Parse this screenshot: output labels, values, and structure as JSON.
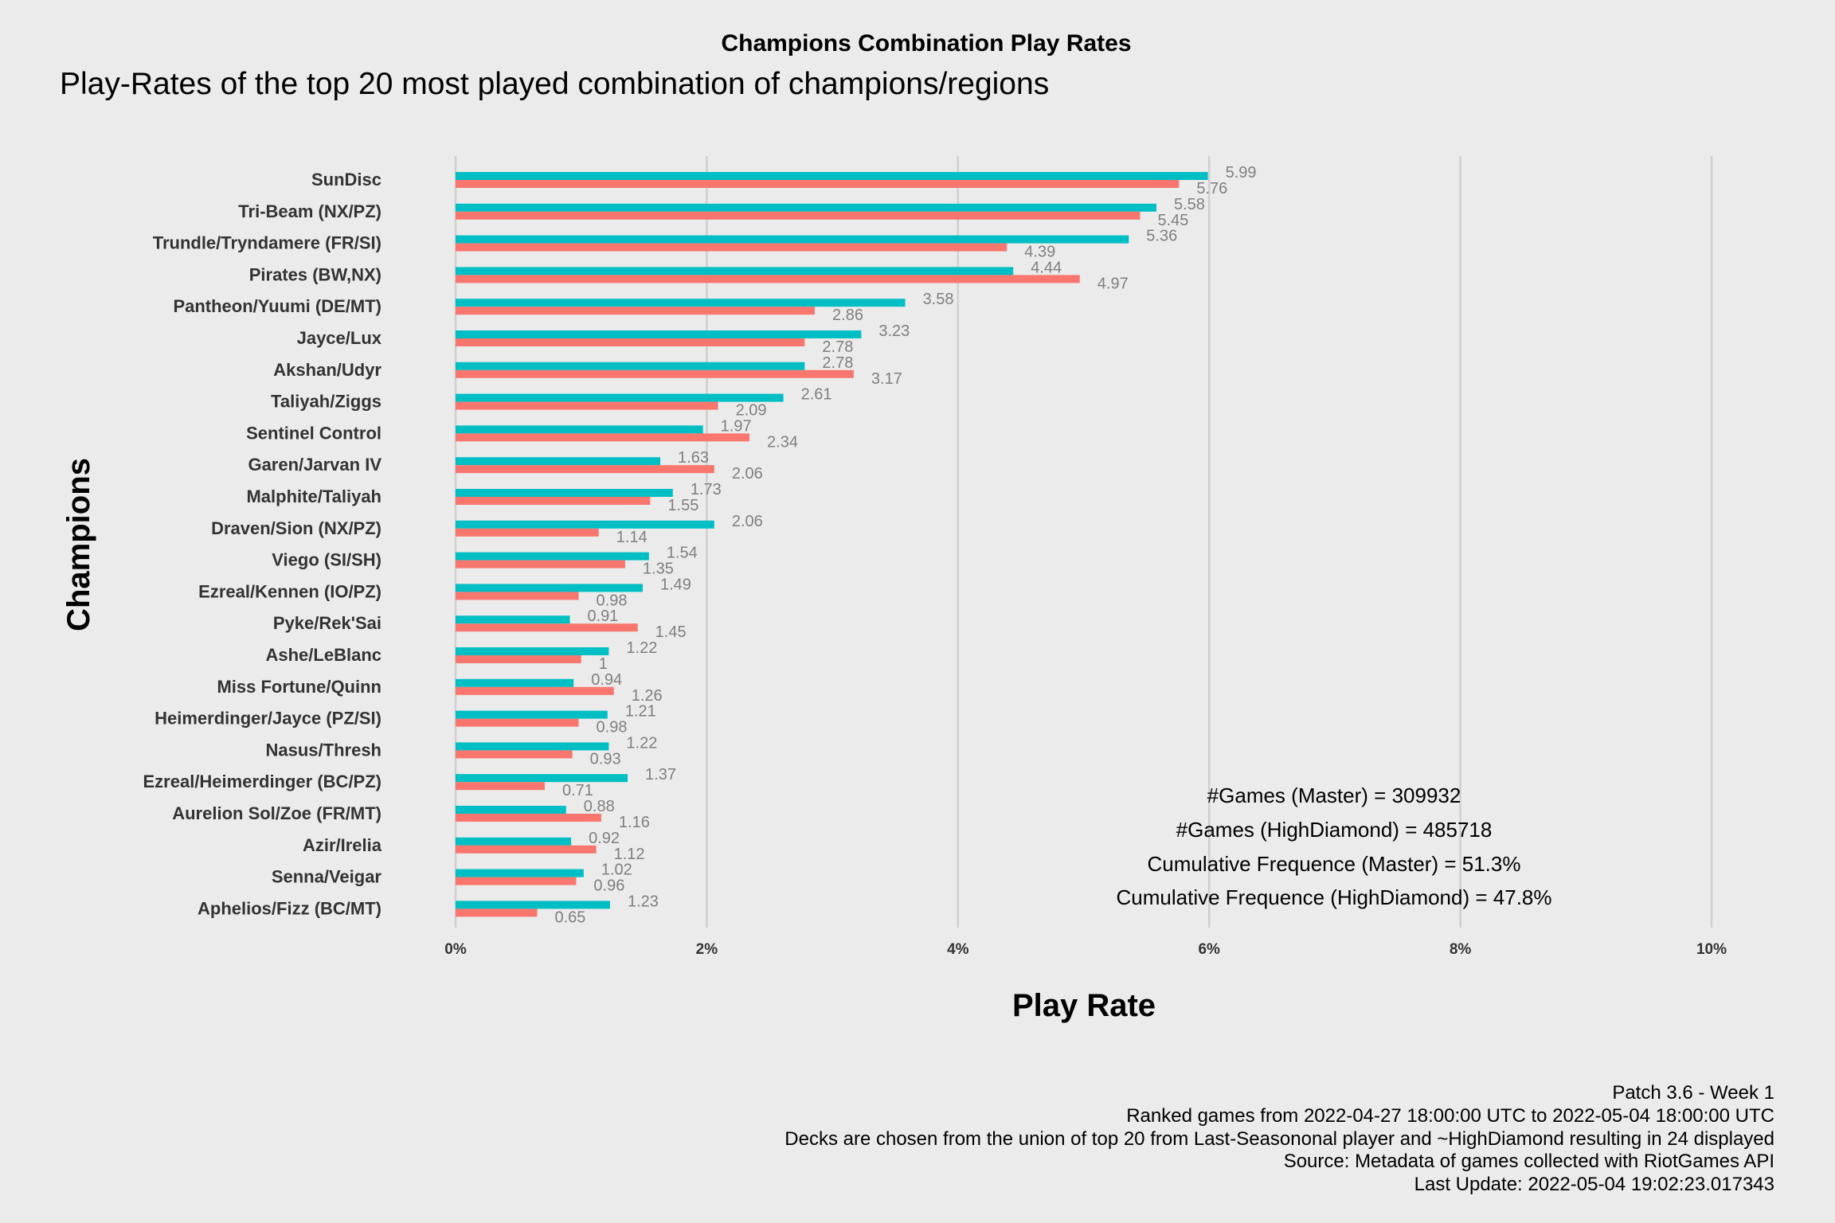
{
  "title": "Champions Combination Play Rates",
  "subtitle": "Play-Rates of the top 20 most played combination of champions/regions",
  "stats": [
    "#Games (Master) = 309932",
    "#Games (HighDiamond) = 485718",
    "Cumulative Frequence (Master) = 51.3%",
    "Cumulative Frequence (HighDiamond) = 47.8%"
  ],
  "caption": [
    "Patch 3.6 - Week 1",
    "Ranked games from 2022-04-27 18:00:00 UTC to 2022-05-04 18:00:00 UTC",
    "Decks are chosen from the union of top 20 from Last-Seasononal player and ~HighDiamond resulting in 24 displayed",
    "Source: Metadata of games collected with RiotGames API",
    "Last Update: 2022-05-04 19:02:23.017343"
  ],
  "colors": {
    "series_master": "#00bfc4",
    "series_highdiamond": "#f8766d",
    "background": "#ebebeb",
    "grid": "#cfcfcf"
  },
  "chart_data": {
    "type": "bar",
    "orientation": "horizontal",
    "xlabel": "Play Rate",
    "ylabel": "Champions",
    "xlim": [
      0,
      10
    ],
    "x_ticks": [
      "0%",
      "2%",
      "4%",
      "6%",
      "8%",
      "10%"
    ],
    "grid": true,
    "legend": "none",
    "categories": [
      "SunDisc",
      "Tri-Beam (NX/PZ)",
      "Trundle/Tryndamere (FR/SI)",
      "Pirates (BW,NX)",
      "Pantheon/Yuumi (DE/MT)",
      "Jayce/Lux",
      "Akshan/Udyr",
      "Taliyah/Ziggs",
      "Sentinel Control",
      "Garen/Jarvan IV",
      "Malphite/Taliyah",
      "Draven/Sion (NX/PZ)",
      "Viego (SI/SH)",
      "Ezreal/Kennen (IO/PZ)",
      "Pyke/Rek'Sai",
      "Ashe/LeBlanc",
      "Miss Fortune/Quinn",
      "Heimerdinger/Jayce (PZ/SI)",
      "Nasus/Thresh",
      "Ezreal/Heimerdinger (BC/PZ)",
      "Aurelion Sol/Zoe (FR/MT)",
      "Azir/Irelia",
      "Senna/Veigar",
      "Aphelios/Fizz (BC/MT)"
    ],
    "series": [
      {
        "values": [
          5.99,
          5.58,
          5.36,
          4.44,
          3.58,
          3.23,
          2.78,
          2.61,
          1.97,
          1.63,
          1.73,
          2.06,
          1.54,
          1.49,
          0.91,
          1.22,
          0.94,
          1.21,
          1.22,
          1.37,
          0.88,
          0.92,
          1.02,
          1.23
        ]
      },
      {
        "values": [
          5.76,
          5.45,
          4.39,
          4.97,
          2.86,
          2.78,
          3.17,
          2.09,
          2.34,
          2.06,
          1.55,
          1.14,
          1.35,
          0.98,
          1.45,
          1,
          1.26,
          0.98,
          0.93,
          0.71,
          1.16,
          1.12,
          0.96,
          0.65
        ]
      }
    ]
  }
}
